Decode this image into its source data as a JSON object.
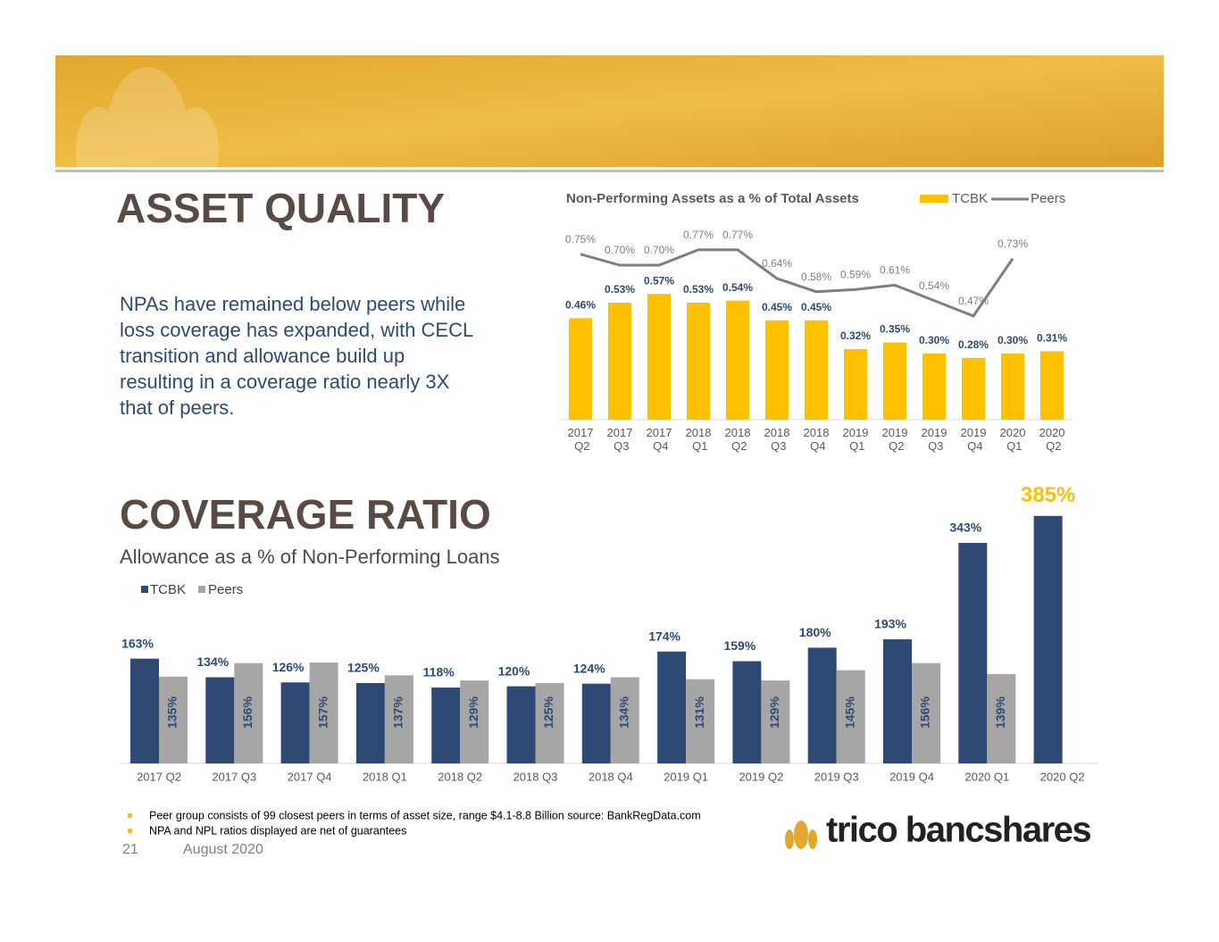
{
  "header": {
    "title": "ASSET QUALITY",
    "body": "NPAs have remained below peers while loss coverage has expanded, with CECL transition and allowance build up resulting in a coverage ratio nearly 3X that of peers."
  },
  "section2": {
    "title": "COVERAGE RATIO",
    "subtitle": "Allowance as a % of Non-Performing Loans"
  },
  "footnotes": [
    "Peer group consists of 99 closest peers in terms of asset size, range $4.1-8.8 Billion source: BankRegData.com",
    "NPA and NPL ratios displayed are net of guarantees"
  ],
  "footer": {
    "page": "21",
    "date": "August 2020",
    "logo": "trico bancshares"
  },
  "chart_data": [
    {
      "type": "bar_line",
      "title": "Non-Performing Assets as a % of Total Assets",
      "categories": [
        "2017 Q2",
        "2017 Q3",
        "2017 Q4",
        "2018 Q1",
        "2018 Q2",
        "2018 Q3",
        "2018 Q4",
        "2019 Q1",
        "2019 Q2",
        "2019 Q3",
        "2019 Q4",
        "2020 Q1",
        "2020 Q2"
      ],
      "ylim": [
        0,
        0.85
      ],
      "series": [
        {
          "name": "TCBK",
          "color": "#ffc000",
          "kind": "bar",
          "values": [
            0.46,
            0.53,
            0.57,
            0.53,
            0.54,
            0.45,
            0.45,
            0.32,
            0.35,
            0.3,
            0.28,
            0.3,
            0.31
          ],
          "value_labels": [
            "0.46%",
            "0.53%",
            "0.57%",
            "0.53%",
            "0.54%",
            "0.45%",
            "0.45%",
            "0.32%",
            "0.35%",
            "0.30%",
            "0.28%",
            "0.30%",
            "0.31%"
          ]
        },
        {
          "name": "Peers",
          "color": "#7f7f7f",
          "kind": "line",
          "values": [
            0.75,
            0.7,
            0.7,
            0.77,
            0.77,
            0.64,
            0.58,
            0.59,
            0.61,
            0.54,
            0.47,
            0.73,
            null
          ],
          "value_labels": [
            "0.75%",
            "0.70%",
            "0.70%",
            "0.77%",
            "0.77%",
            "0.64%",
            "0.58%",
            "0.59%",
            "0.61%",
            "0.54%",
            "0.47%",
            "0.73%",
            null
          ]
        }
      ]
    },
    {
      "type": "bar",
      "categories": [
        "2017 Q2",
        "2017 Q3",
        "2017 Q4",
        "2018 Q1",
        "2018 Q2",
        "2018 Q3",
        "2018 Q4",
        "2019 Q1",
        "2019 Q2",
        "2019 Q3",
        "2019 Q4",
        "2020 Q1",
        "2020 Q2"
      ],
      "ylim": [
        0,
        400
      ],
      "series": [
        {
          "name": "TCBK",
          "color": "#2e4a74",
          "values": [
            163,
            134,
            126,
            125,
            118,
            120,
            124,
            174,
            159,
            180,
            193,
            343,
            385
          ],
          "value_labels": [
            "163%",
            "134%",
            "126%",
            "125%",
            "118%",
            "120%",
            "124%",
            "174%",
            "159%",
            "180%",
            "193%",
            "343%",
            "385%"
          ]
        },
        {
          "name": "Peers",
          "color": "#a6a6a6",
          "values": [
            135,
            156,
            157,
            137,
            129,
            125,
            134,
            131,
            129,
            145,
            156,
            139,
            null
          ],
          "value_labels": [
            "135%",
            "156%",
            "157%",
            "137%",
            "129%",
            "125%",
            "134%",
            "131%",
            "129%",
            "145%",
            "156%",
            "139%",
            null
          ]
        }
      ]
    }
  ]
}
